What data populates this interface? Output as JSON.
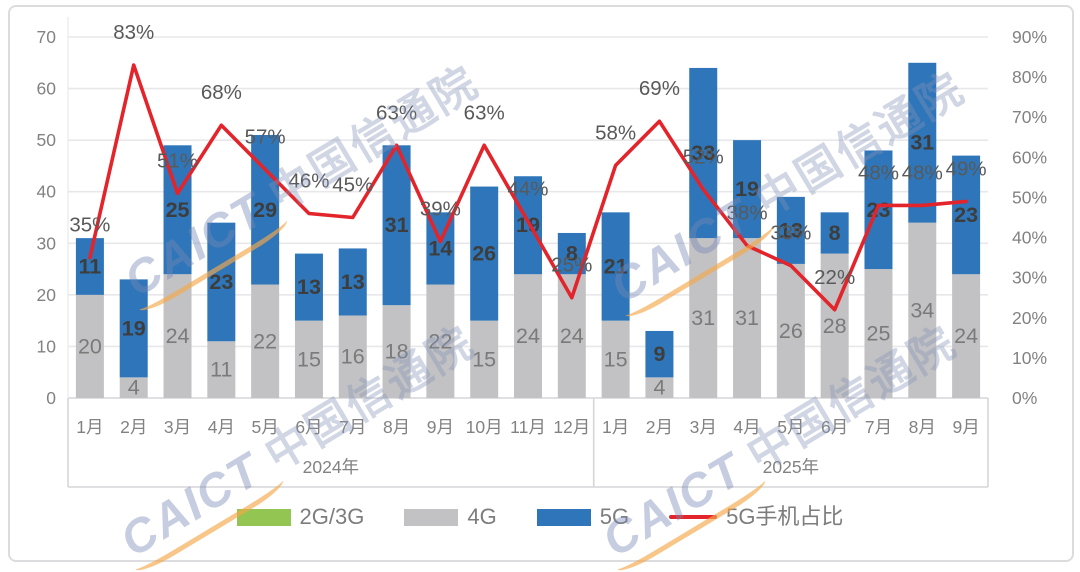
{
  "watermark": {
    "latin": "CAICT",
    "cjk": "中国信通院"
  },
  "chart_data": {
    "type": "bar",
    "subtype": "stacked-bar-with-line",
    "title": "",
    "categories": [
      "1月",
      "2月",
      "3月",
      "4月",
      "5月",
      "6月",
      "7月",
      "8月",
      "9月",
      "10月",
      "11月",
      "12月",
      "1月",
      "2月",
      "3月",
      "4月",
      "5月",
      "6月",
      "7月",
      "8月",
      "9月"
    ],
    "year_groups": [
      {
        "label": "2024年",
        "count": 12
      },
      {
        "label": "2025年",
        "count": 9
      }
    ],
    "series": [
      {
        "name": "2G/3G",
        "type": "bar",
        "color": "#92C552",
        "values": [
          0,
          0,
          0,
          0,
          0,
          0,
          0,
          0,
          0,
          0,
          0,
          0,
          0,
          0,
          0,
          0,
          0,
          0,
          0,
          0,
          0
        ]
      },
      {
        "name": "4G",
        "type": "bar",
        "color": "#C2C2C4",
        "values": [
          20,
          4,
          24,
          11,
          22,
          15,
          16,
          18,
          22,
          15,
          24,
          24,
          15,
          4,
          31,
          31,
          26,
          28,
          25,
          34,
          24
        ]
      },
      {
        "name": "5G",
        "type": "bar",
        "color": "#2E76B9",
        "values": [
          11,
          19,
          25,
          23,
          29,
          13,
          13,
          31,
          14,
          26,
          19,
          8,
          21,
          9,
          33,
          19,
          13,
          8,
          23,
          31,
          23
        ]
      }
    ],
    "line_series": {
      "name": "5G手机占比",
      "color": "#E3242B",
      "unit": "%",
      "values": [
        35,
        83,
        51,
        68,
        57,
        46,
        45,
        63,
        39,
        63,
        44,
        25,
        58,
        69,
        52,
        38,
        33,
        22,
        48,
        48,
        49
      ]
    },
    "left_axis": {
      "min": 0,
      "max": 70,
      "ticks": [
        "0",
        "10",
        "20",
        "30",
        "40",
        "50",
        "60",
        "70"
      ]
    },
    "right_axis": {
      "min": 0,
      "max": 90,
      "ticks": [
        "0%",
        "10%",
        "20%",
        "30%",
        "40%",
        "50%",
        "60%",
        "70%",
        "80%",
        "90%"
      ]
    },
    "grid": "horizontal",
    "legend_position": "bottom",
    "legend": [
      {
        "label": "2G/3G",
        "color": "#92C552",
        "type": "box"
      },
      {
        "label": "4G",
        "color": "#C2C2C4",
        "type": "box"
      },
      {
        "label": "5G",
        "color": "#2E76B9",
        "type": "box"
      },
      {
        "label": "5G手机占比",
        "color": "#E3242B",
        "type": "line"
      }
    ]
  }
}
